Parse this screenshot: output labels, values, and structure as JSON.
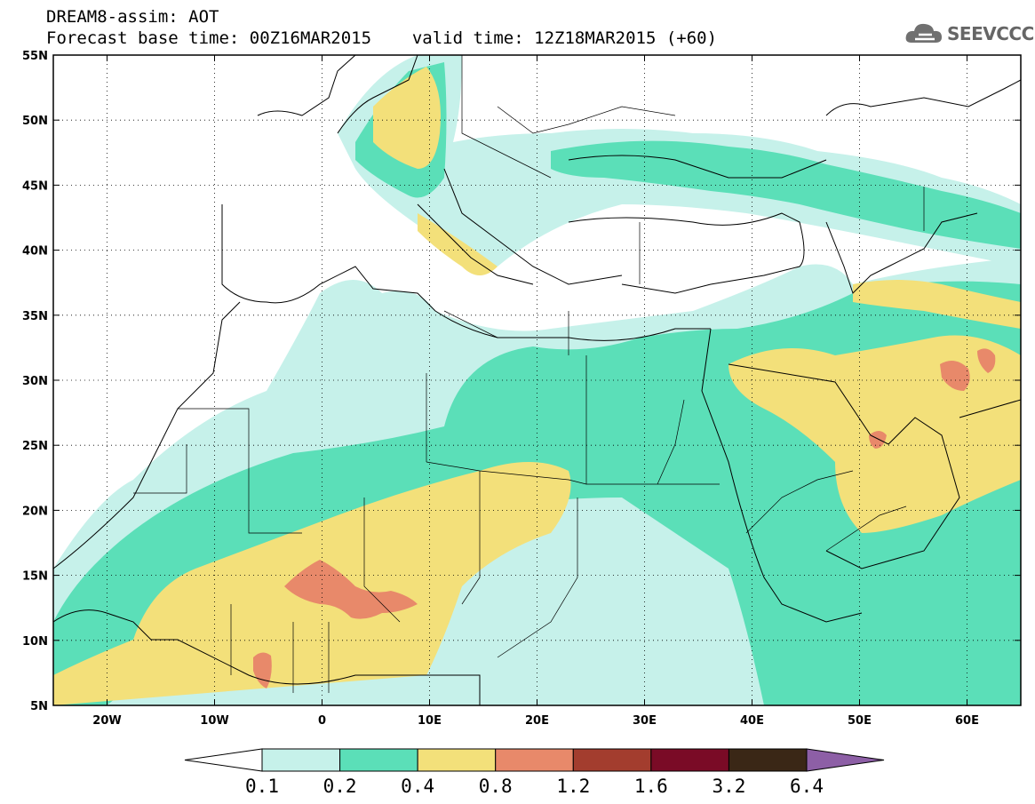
{
  "header": {
    "model_line": "DREAM8-assim: AOT",
    "base_label": "Forecast base time:",
    "base_time": "00Z16MAR2015",
    "valid_label": "valid time:",
    "valid_time": "12Z18MAR2015 (+60)"
  },
  "logo": {
    "text": "SEEVCCC",
    "icon": "cloud-icon"
  },
  "map": {
    "lon_range": [
      -25,
      65
    ],
    "lat_range": [
      5,
      55
    ],
    "lon_ticks": [
      "20W",
      "10W",
      "0",
      "10E",
      "20E",
      "30E",
      "40E",
      "50E",
      "60E"
    ],
    "lat_ticks": [
      "55N",
      "50N",
      "45N",
      "40N",
      "35N",
      "30N",
      "25N",
      "20N",
      "15N",
      "10N",
      "5N"
    ],
    "grid": "dotted"
  },
  "colorbar": {
    "levels": [
      "0.1",
      "0.2",
      "0.4",
      "0.8",
      "1.2",
      "1.6",
      "3.2",
      "6.4"
    ],
    "colors": [
      "#ffffff",
      "#c6f1ea",
      "#5bdfb8",
      "#f3e07a",
      "#e8896a",
      "#a33d2e",
      "#7a0b26",
      "#3a2716",
      "#8d5fa6"
    ]
  }
}
